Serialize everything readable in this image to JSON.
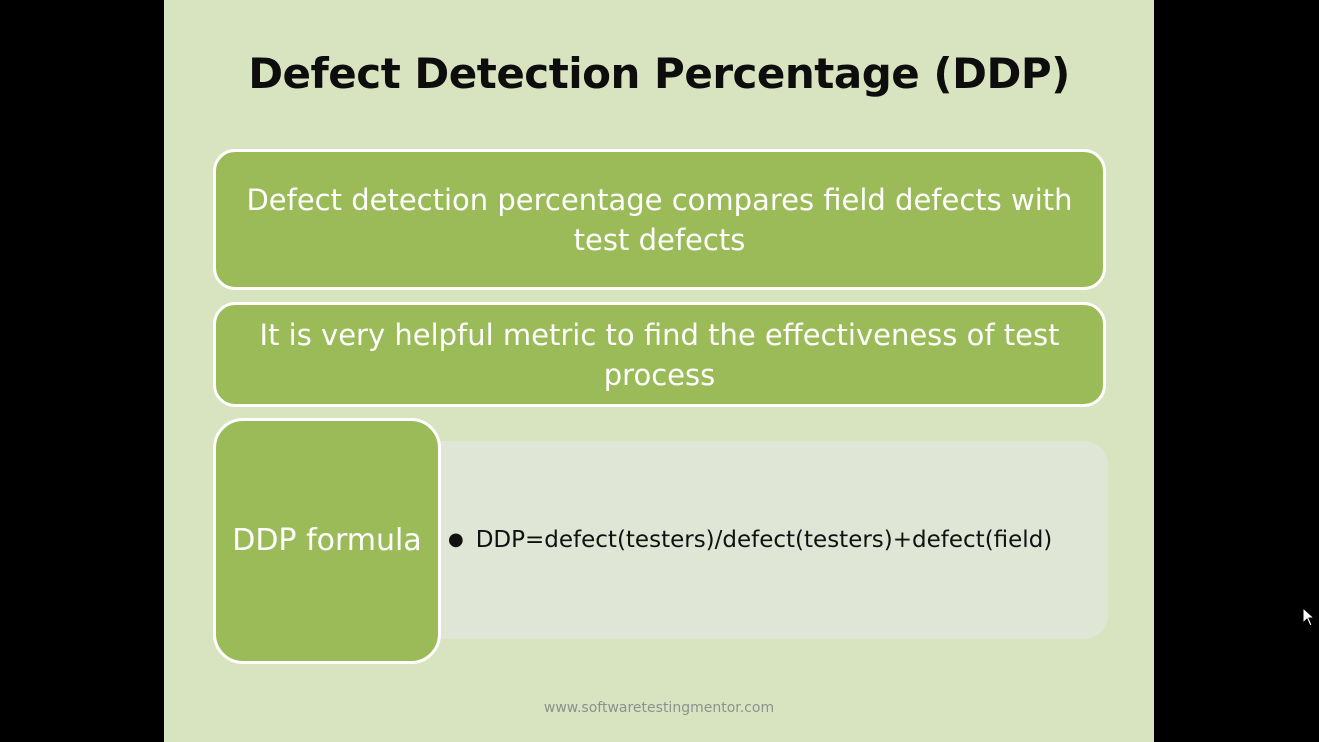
{
  "slide": {
    "title": "Defect Detection Percentage (DDP)",
    "points": [
      "Defect detection percentage compares field defects with test defects",
      "It is very helpful metric to find the effectiveness of test process"
    ],
    "formula_label": "DDP formula",
    "formula_items": [
      "DDP=defect(testers)/defect(testers)+defect(field)"
    ],
    "footer": "www.softwaretestingmentor.com"
  },
  "colors": {
    "slide_background": "#d8e4bf",
    "box_fill": "#9bbb59",
    "box_border": "#ffffff",
    "formula_panel": "#dfe6d5",
    "letterbox": "#000000"
  },
  "icons": {
    "cursor": "mouse-pointer-icon",
    "bullet": "bullet-dot-icon"
  }
}
